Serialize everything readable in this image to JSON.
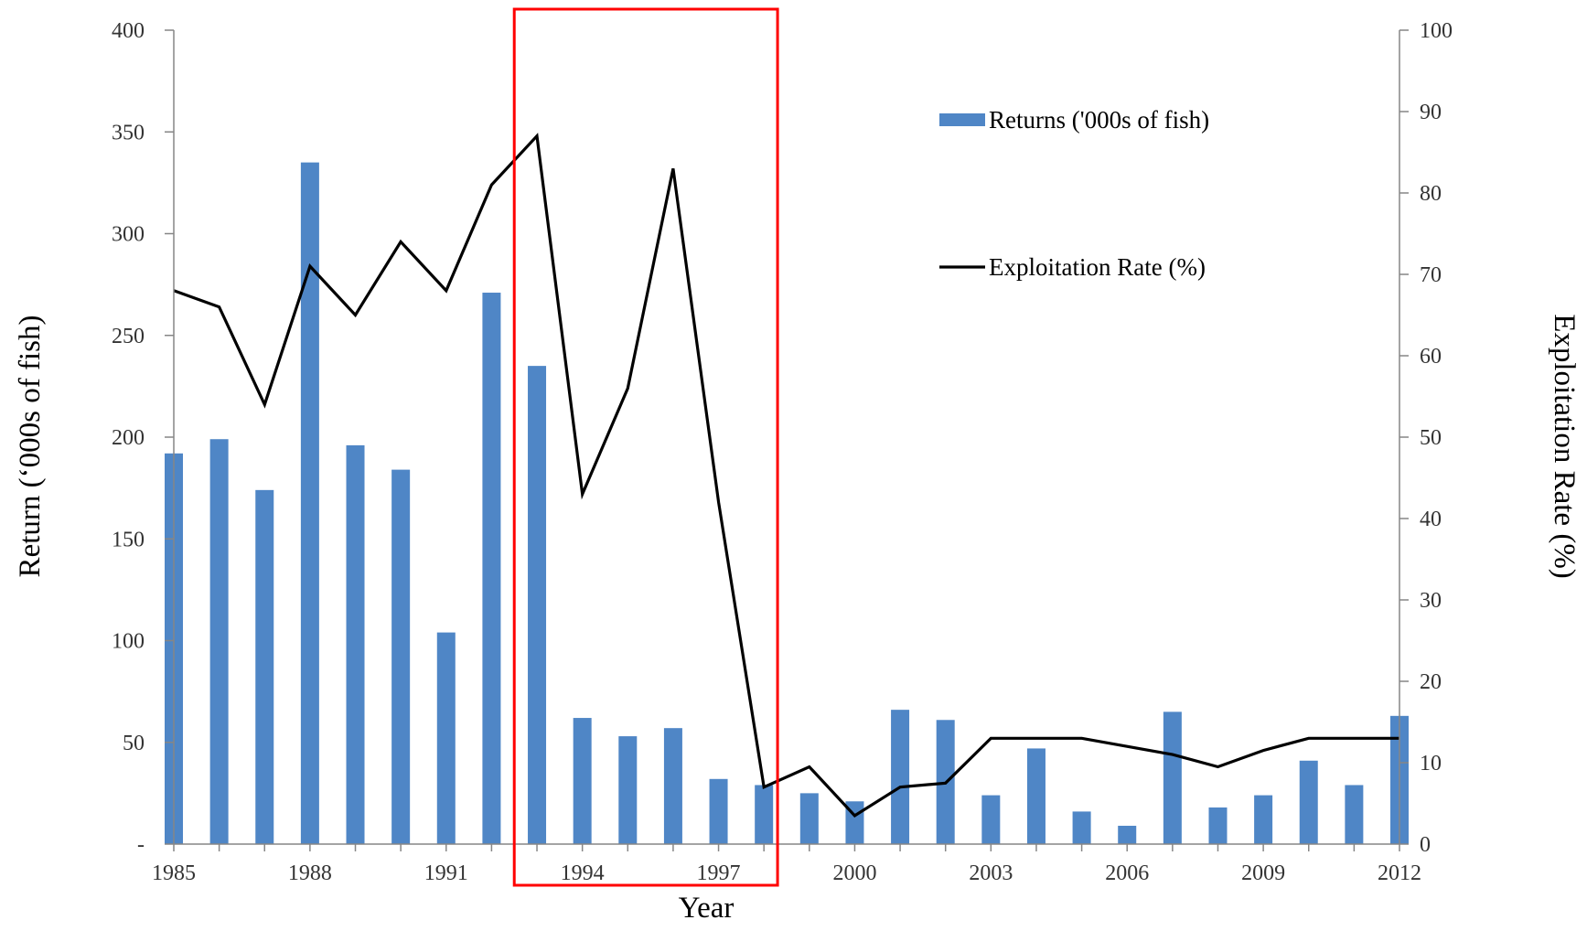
{
  "chart_data": {
    "type": "bar",
    "title": "",
    "xlabel": "Year",
    "ylabel_left": "Return (‘000s of fish)",
    "ylabel_right": "Exploitation Rate (%)",
    "x": [
      1985,
      1986,
      1987,
      1988,
      1989,
      1990,
      1991,
      1992,
      1993,
      1994,
      1995,
      1996,
      1997,
      1998,
      1999,
      2000,
      2001,
      2002,
      2003,
      2004,
      2005,
      2006,
      2007,
      2008,
      2009,
      2010,
      2011,
      2012
    ],
    "x_tick_labels": [
      "1985",
      "1988",
      "1991",
      "1994",
      "1997",
      "2000",
      "2003",
      "2006",
      "2009",
      "2012"
    ],
    "ylim_left": [
      0,
      400
    ],
    "y_left_tick_labels": [
      "-",
      "50",
      "100",
      "150",
      "200",
      "250",
      "300",
      "350",
      "400"
    ],
    "ylim_right": [
      0,
      100
    ],
    "y_right_tick_labels": [
      "0",
      "10",
      "20",
      "30",
      "40",
      "50",
      "60",
      "70",
      "80",
      "90",
      "100"
    ],
    "series": [
      {
        "name": "Returns ('000s of fish)",
        "kind": "bar",
        "axis": "left",
        "color": "#4f86c6",
        "values": [
          192,
          199,
          174,
          335,
          196,
          184,
          104,
          271,
          235,
          62,
          53,
          57,
          32,
          29,
          25,
          21,
          66,
          61,
          24,
          47,
          16,
          9,
          65,
          18,
          24,
          41,
          29,
          63
        ]
      },
      {
        "name": "Exploitation Rate (%)",
        "kind": "line",
        "axis": "right",
        "color": "#000000",
        "values": [
          68,
          66,
          54,
          71,
          65,
          74,
          68,
          81,
          87,
          43,
          56,
          83,
          42,
          7,
          9.5,
          3.5,
          7,
          7.5,
          13,
          13,
          13,
          12,
          11,
          9.5,
          11.5,
          13,
          13,
          13
        ]
      }
    ],
    "annotations": [
      {
        "type": "highlight-box",
        "color": "#ff0000",
        "from_year": 1992.5,
        "to_year": 1998.3
      }
    ],
    "grid": false,
    "legend": "top-right, inside plot"
  }
}
